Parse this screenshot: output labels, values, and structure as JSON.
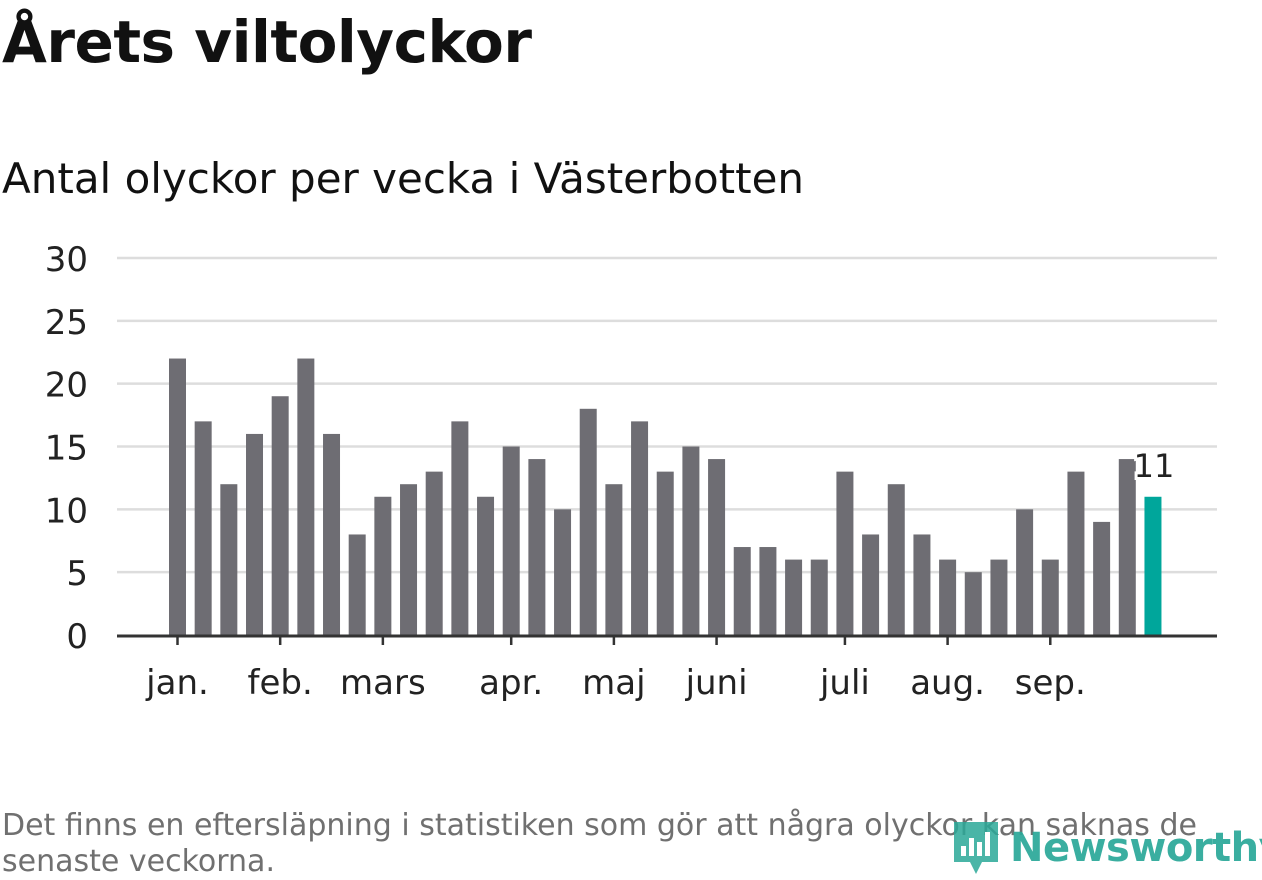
{
  "title": "Årets viltolyckor",
  "subtitle": "Antal olyckor per vecka i Västerbotten",
  "footnote": "Det finns en eftersläpning i statistiken som gör att några olyckor kan saknas de senaste veckorna.",
  "brand": "Newsworthy",
  "colors": {
    "bar": "#6e6d73",
    "highlight": "#00a69b",
    "grid": "#dddddd",
    "axis": "#333333",
    "brand": "#2aa898"
  },
  "chart_data": {
    "type": "bar",
    "title": "Antal olyckor per vecka i Västerbotten",
    "xlabel": "",
    "ylabel": "",
    "ylim": [
      0,
      30
    ],
    "yticks": [
      0,
      5,
      10,
      15,
      20,
      25,
      30
    ],
    "values": [
      22,
      17,
      12,
      16,
      19,
      22,
      16,
      8,
      11,
      12,
      13,
      17,
      11,
      15,
      14,
      10,
      18,
      12,
      17,
      13,
      15,
      14,
      7,
      7,
      6,
      6,
      13,
      8,
      12,
      8,
      6,
      5,
      6,
      10,
      6,
      13,
      9,
      14,
      11
    ],
    "month_labels": [
      {
        "label": "jan.",
        "week_index": 0
      },
      {
        "label": "feb.",
        "week_index": 4
      },
      {
        "label": "mars",
        "week_index": 8
      },
      {
        "label": "apr.",
        "week_index": 13
      },
      {
        "label": "maj",
        "week_index": 17
      },
      {
        "label": "juni",
        "week_index": 21
      },
      {
        "label": "juli",
        "week_index": 26
      },
      {
        "label": "aug.",
        "week_index": 30
      },
      {
        "label": "sep.",
        "week_index": 34
      }
    ],
    "highlight_index": 38,
    "annotation": {
      "week_index": 38,
      "text": "11"
    },
    "grid": true
  }
}
